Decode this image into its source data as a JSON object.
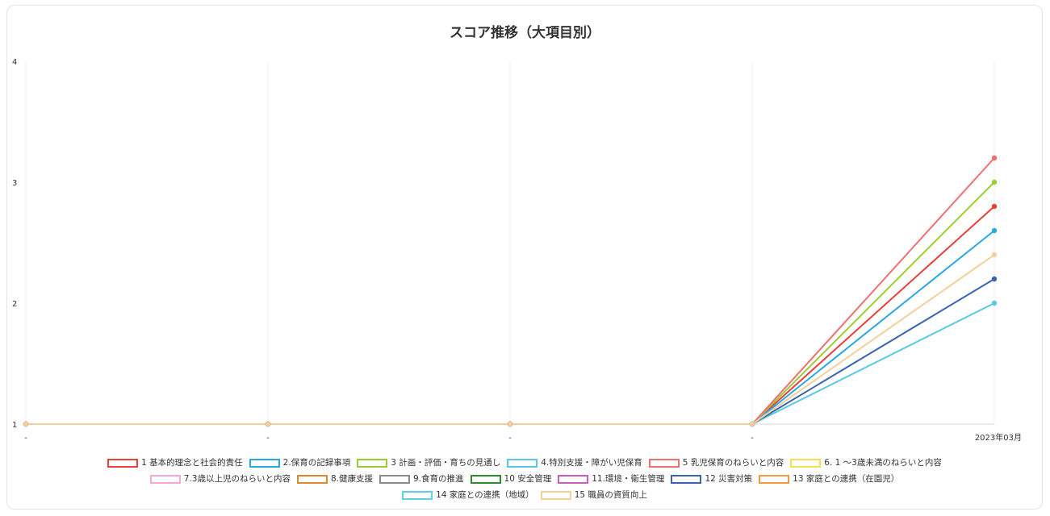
{
  "chart_data": {
    "type": "line",
    "title": "スコア推移（大項目別）",
    "x": [
      "-",
      "-",
      "-",
      "-",
      "2023年03月"
    ],
    "ylim": [
      1,
      4
    ],
    "yticks": [
      1,
      2,
      3,
      4
    ],
    "grid": true,
    "legend_position": "bottom",
    "series": [
      {
        "name": "1 基本的理念と社会的責任",
        "color": "#e8413c",
        "values": [
          1,
          1,
          1,
          1,
          2.8
        ]
      },
      {
        "name": "2.保育の記録事項",
        "color": "#2aa7e4",
        "values": [
          1,
          1,
          1,
          1,
          2.6
        ]
      },
      {
        "name": "3 計画・評価・育ちの見通し",
        "color": "#9acd32",
        "values": [
          1,
          1,
          1,
          1,
          3.0
        ]
      },
      {
        "name": "4.特別支援・障がい児保育",
        "color": "#5bc8e6",
        "values": [
          1,
          1,
          1,
          1,
          2.0
        ]
      },
      {
        "name": "5 乳児保育のねらいと内容",
        "color": "#f07070",
        "values": [
          1,
          1,
          1,
          1,
          3.2
        ]
      },
      {
        "name": "6. 1 〜3歳未満のねらいと内容",
        "color": "#f5e050",
        "values": [
          1,
          1,
          1,
          1,
          null
        ]
      },
      {
        "name": "7.3歳以上児のねらいと内容",
        "color": "#f4a8d8",
        "values": [
          1,
          1,
          1,
          1,
          null
        ]
      },
      {
        "name": "8.健康支援",
        "color": "#d98a2b",
        "values": [
          1,
          1,
          1,
          1,
          null
        ]
      },
      {
        "name": "9.食育の推進",
        "color": "#8a8a8a",
        "values": [
          1,
          1,
          1,
          1,
          null
        ]
      },
      {
        "name": "10 安全管理",
        "color": "#2e8b2e",
        "values": [
          1,
          1,
          1,
          1,
          null
        ]
      },
      {
        "name": "11.環境・衛生管理",
        "color": "#c85fc0",
        "values": [
          1,
          1,
          1,
          1,
          null
        ]
      },
      {
        "name": "12 災害対策",
        "color": "#3a64b0",
        "values": [
          1,
          1,
          1,
          1,
          2.2
        ]
      },
      {
        "name": "13 家庭との連携（在園児）",
        "color": "#f59a3c",
        "values": [
          1,
          1,
          1,
          1,
          null
        ]
      },
      {
        "name": "14 家庭との連携（地域）",
        "color": "#5fd0e8",
        "values": [
          1,
          1,
          1,
          1,
          null
        ]
      },
      {
        "name": "15 職員の資質向上",
        "color": "#f5cf9a",
        "values": [
          1,
          1,
          1,
          1,
          2.4
        ]
      }
    ]
  },
  "legend_rows": [
    [
      0,
      1,
      2,
      3,
      4,
      5
    ],
    [
      6,
      7,
      8,
      9,
      10,
      11,
      12
    ],
    [
      13,
      14
    ]
  ]
}
